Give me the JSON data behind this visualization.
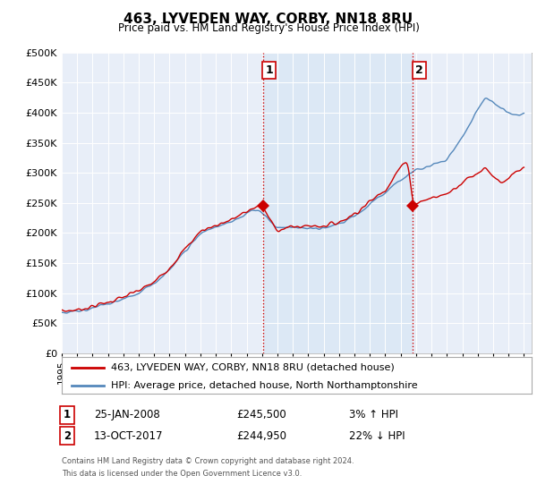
{
  "title": "463, LYVEDEN WAY, CORBY, NN18 8RU",
  "subtitle": "Price paid vs. HM Land Registry's House Price Index (HPI)",
  "ylim": [
    0,
    500000
  ],
  "yticks": [
    0,
    50000,
    100000,
    150000,
    200000,
    250000,
    300000,
    350000,
    400000,
    450000,
    500000
  ],
  "ytick_labels": [
    "£0",
    "£50K",
    "£100K",
    "£150K",
    "£200K",
    "£250K",
    "£300K",
    "£350K",
    "£400K",
    "£450K",
    "£500K"
  ],
  "xlim_start": 1995.0,
  "xlim_end": 2025.5,
  "xtick_years": [
    1995,
    1996,
    1997,
    1998,
    1999,
    2000,
    2001,
    2002,
    2003,
    2004,
    2005,
    2006,
    2007,
    2008,
    2009,
    2010,
    2011,
    2012,
    2013,
    2014,
    2015,
    2016,
    2017,
    2018,
    2019,
    2020,
    2021,
    2022,
    2023,
    2024,
    2025
  ],
  "line_color_red": "#cc0000",
  "line_color_blue": "#5588bb",
  "point1_x": 2008.07,
  "point1_y": 245500,
  "point1_label": "1",
  "point2_x": 2017.79,
  "point2_y": 244950,
  "point2_label": "2",
  "legend_red": "463, LYVEDEN WAY, CORBY, NN18 8RU (detached house)",
  "legend_blue": "HPI: Average price, detached house, North Northamptonshire",
  "footer1": "Contains HM Land Registry data © Crown copyright and database right 2024.",
  "footer2": "This data is licensed under the Open Government Licence v3.0.",
  "table_row1": [
    "1",
    "25-JAN-2008",
    "£245,500",
    "3% ↑ HPI"
  ],
  "table_row2": [
    "2",
    "13-OCT-2017",
    "£244,950",
    "22% ↓ HPI"
  ],
  "bg_color": "#ffffff",
  "plot_bg_color": "#e8eef8",
  "shade_color": "#dce8f5",
  "grid_color": "#ffffff",
  "vline_color": "#cc0000",
  "marker_color_red": "#cc0000",
  "hpi_waypoints_x": [
    1995.0,
    1996.0,
    1997.0,
    1998.0,
    1999.0,
    2000.0,
    2001.0,
    2002.0,
    2003.0,
    2004.0,
    2005.0,
    2006.0,
    2007.0,
    2007.5,
    2008.0,
    2008.5,
    2009.0,
    2010.0,
    2011.0,
    2012.0,
    2013.0,
    2014.0,
    2015.0,
    2016.0,
    2017.0,
    2018.0,
    2019.0,
    2020.0,
    2021.0,
    2022.0,
    2022.5,
    2023.0,
    2023.5,
    2024.0,
    2024.5,
    2025.0
  ],
  "hpi_waypoints_y": [
    68000,
    70000,
    75000,
    82000,
    90000,
    100000,
    115000,
    140000,
    170000,
    200000,
    210000,
    218000,
    232000,
    240000,
    234000,
    220000,
    208000,
    210000,
    208000,
    208000,
    215000,
    228000,
    248000,
    268000,
    288000,
    305000,
    312000,
    322000,
    360000,
    405000,
    425000,
    418000,
    408000,
    400000,
    395000,
    398000
  ],
  "red_waypoints_x": [
    1995.0,
    1996.0,
    1997.0,
    1998.0,
    1999.0,
    2000.0,
    2001.0,
    2002.0,
    2003.0,
    2004.0,
    2005.0,
    2006.0,
    2007.0,
    2007.5,
    2008.0,
    2008.5,
    2009.0,
    2010.0,
    2011.0,
    2012.0,
    2013.0,
    2014.0,
    2015.0,
    2016.0,
    2017.0,
    2017.5,
    2017.79,
    2018.0,
    2019.0,
    2020.0,
    2021.0,
    2022.0,
    2022.5,
    2023.0,
    2023.5,
    2024.0,
    2024.5,
    2025.0
  ],
  "red_waypoints_y": [
    70000,
    72000,
    78000,
    85000,
    93000,
    104000,
    118000,
    143000,
    173000,
    203000,
    213000,
    222000,
    235000,
    243000,
    245500,
    222000,
    205000,
    210000,
    212000,
    212000,
    218000,
    232000,
    252000,
    272000,
    310000,
    320000,
    244950,
    250000,
    258000,
    265000,
    285000,
    300000,
    310000,
    295000,
    280000,
    290000,
    300000,
    308000
  ]
}
